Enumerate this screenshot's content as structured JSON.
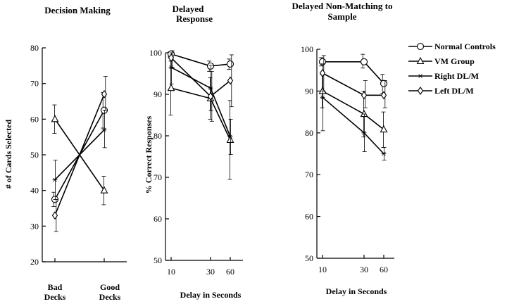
{
  "legend": [
    {
      "name": "Normal Controls",
      "marker": "circle"
    },
    {
      "name": "VM Group",
      "marker": "triangle"
    },
    {
      "name": "Right DL/M",
      "marker": "star"
    },
    {
      "name": "Left DL/M",
      "marker": "diamond"
    }
  ],
  "chart_data": [
    {
      "type": "line",
      "title": "Decision Making",
      "ylabel": "# of Cards Selected",
      "xlabel": "",
      "ylim": [
        20,
        80
      ],
      "yticks": [
        20,
        30,
        40,
        50,
        60,
        70,
        80
      ],
      "categories": [
        "Bad Decks",
        "Good Decks"
      ],
      "category_labels": [
        [
          "Bad",
          "Decks"
        ],
        [
          "Good",
          "Decks"
        ]
      ],
      "series": [
        {
          "name": "Normal Controls",
          "marker": "circle",
          "values": [
            37.5,
            62.5
          ],
          "err_low": [
            35.5,
            57.5
          ],
          "err_high": [
            39.5,
            67.5
          ]
        },
        {
          "name": "VM Group",
          "marker": "triangle",
          "values": [
            60,
            40
          ],
          "err_low": [
            56,
            36
          ],
          "err_high": [
            64,
            44
          ]
        },
        {
          "name": "Right DL/M",
          "marker": "star",
          "values": [
            43,
            57
          ],
          "err_low": [
            37.5,
            52
          ],
          "err_high": [
            48.5,
            62.5
          ]
        },
        {
          "name": "Left DL/M",
          "marker": "diamond",
          "values": [
            33,
            67
          ],
          "err_low": [
            28.5,
            62.5
          ],
          "err_high": [
            37.5,
            72
          ]
        }
      ]
    },
    {
      "type": "line",
      "title": "Delayed Response",
      "title_lines": [
        "Delayed",
        "Response"
      ],
      "ylabel": "% Correct Responses",
      "xlabel": "Delay in Seconds",
      "ylim": [
        50,
        100
      ],
      "yticks": [
        50,
        60,
        70,
        80,
        90,
        100
      ],
      "categories": [
        "10",
        "30",
        "60"
      ],
      "series": [
        {
          "name": "Normal Controls",
          "marker": "circle",
          "values": [
            99.7,
            96.8,
            97.3
          ],
          "err_low": [
            99.0,
            95.5,
            96.0
          ],
          "err_high": [
            100.2,
            98.0,
            98.5
          ]
        },
        {
          "name": "VM Group",
          "marker": "triangle",
          "values": [
            91.5,
            89.0,
            79.0
          ],
          "err_low": [
            85.0,
            84.0,
            69.5
          ],
          "err_high": [
            98.0,
            94.0,
            88.5
          ]
        },
        {
          "name": "Right DL/M",
          "marker": "star",
          "values": [
            96.5,
            91.5,
            79.8
          ],
          "err_low": [
            92.5,
            86.0,
            75.5
          ],
          "err_high": [
            100.0,
            97.0,
            84.0
          ]
        },
        {
          "name": "Left DL/M",
          "marker": "diamond",
          "values": [
            98.8,
            89.5,
            93.3
          ],
          "err_low": [
            96.5,
            83.5,
            87.0
          ],
          "err_high": [
            100.5,
            95.5,
            99.5
          ]
        }
      ]
    },
    {
      "type": "line",
      "title": "Delayed Non-Matching to Sample",
      "title_lines": [
        "Delayed Non-Matching to",
        "Sample"
      ],
      "ylabel": "",
      "xlabel": "Delay in Seconds",
      "ylim": [
        50,
        100
      ],
      "yticks": [
        50,
        60,
        70,
        80,
        90,
        100
      ],
      "categories": [
        "10",
        "30",
        "60"
      ],
      "series": [
        {
          "name": "Normal Controls",
          "marker": "circle",
          "values": [
            97.0,
            97.0,
            91.8
          ],
          "err_low": [
            96.0,
            95.5,
            89.5
          ],
          "err_high": [
            98.0,
            98.8,
            94.0
          ]
        },
        {
          "name": "VM Group",
          "marker": "triangle",
          "values": [
            90.0,
            84.5,
            80.8
          ],
          "err_low": [
            86.0,
            79.0,
            76.5
          ],
          "err_high": [
            94.0,
            90.0,
            85.0
          ]
        },
        {
          "name": "Right DL/M",
          "marker": "star",
          "values": [
            88.5,
            80.0,
            75.0
          ],
          "err_low": [
            80.5,
            75.5,
            73.5
          ],
          "err_high": [
            96.5,
            84.5,
            76.5
          ]
        },
        {
          "name": "Left DL/M",
          "marker": "diamond",
          "values": [
            94.3,
            89.0,
            89.0
          ],
          "err_low": [
            90.0,
            86.0,
            86.0
          ],
          "err_high": [
            98.5,
            92.5,
            92.5
          ]
        }
      ]
    }
  ]
}
